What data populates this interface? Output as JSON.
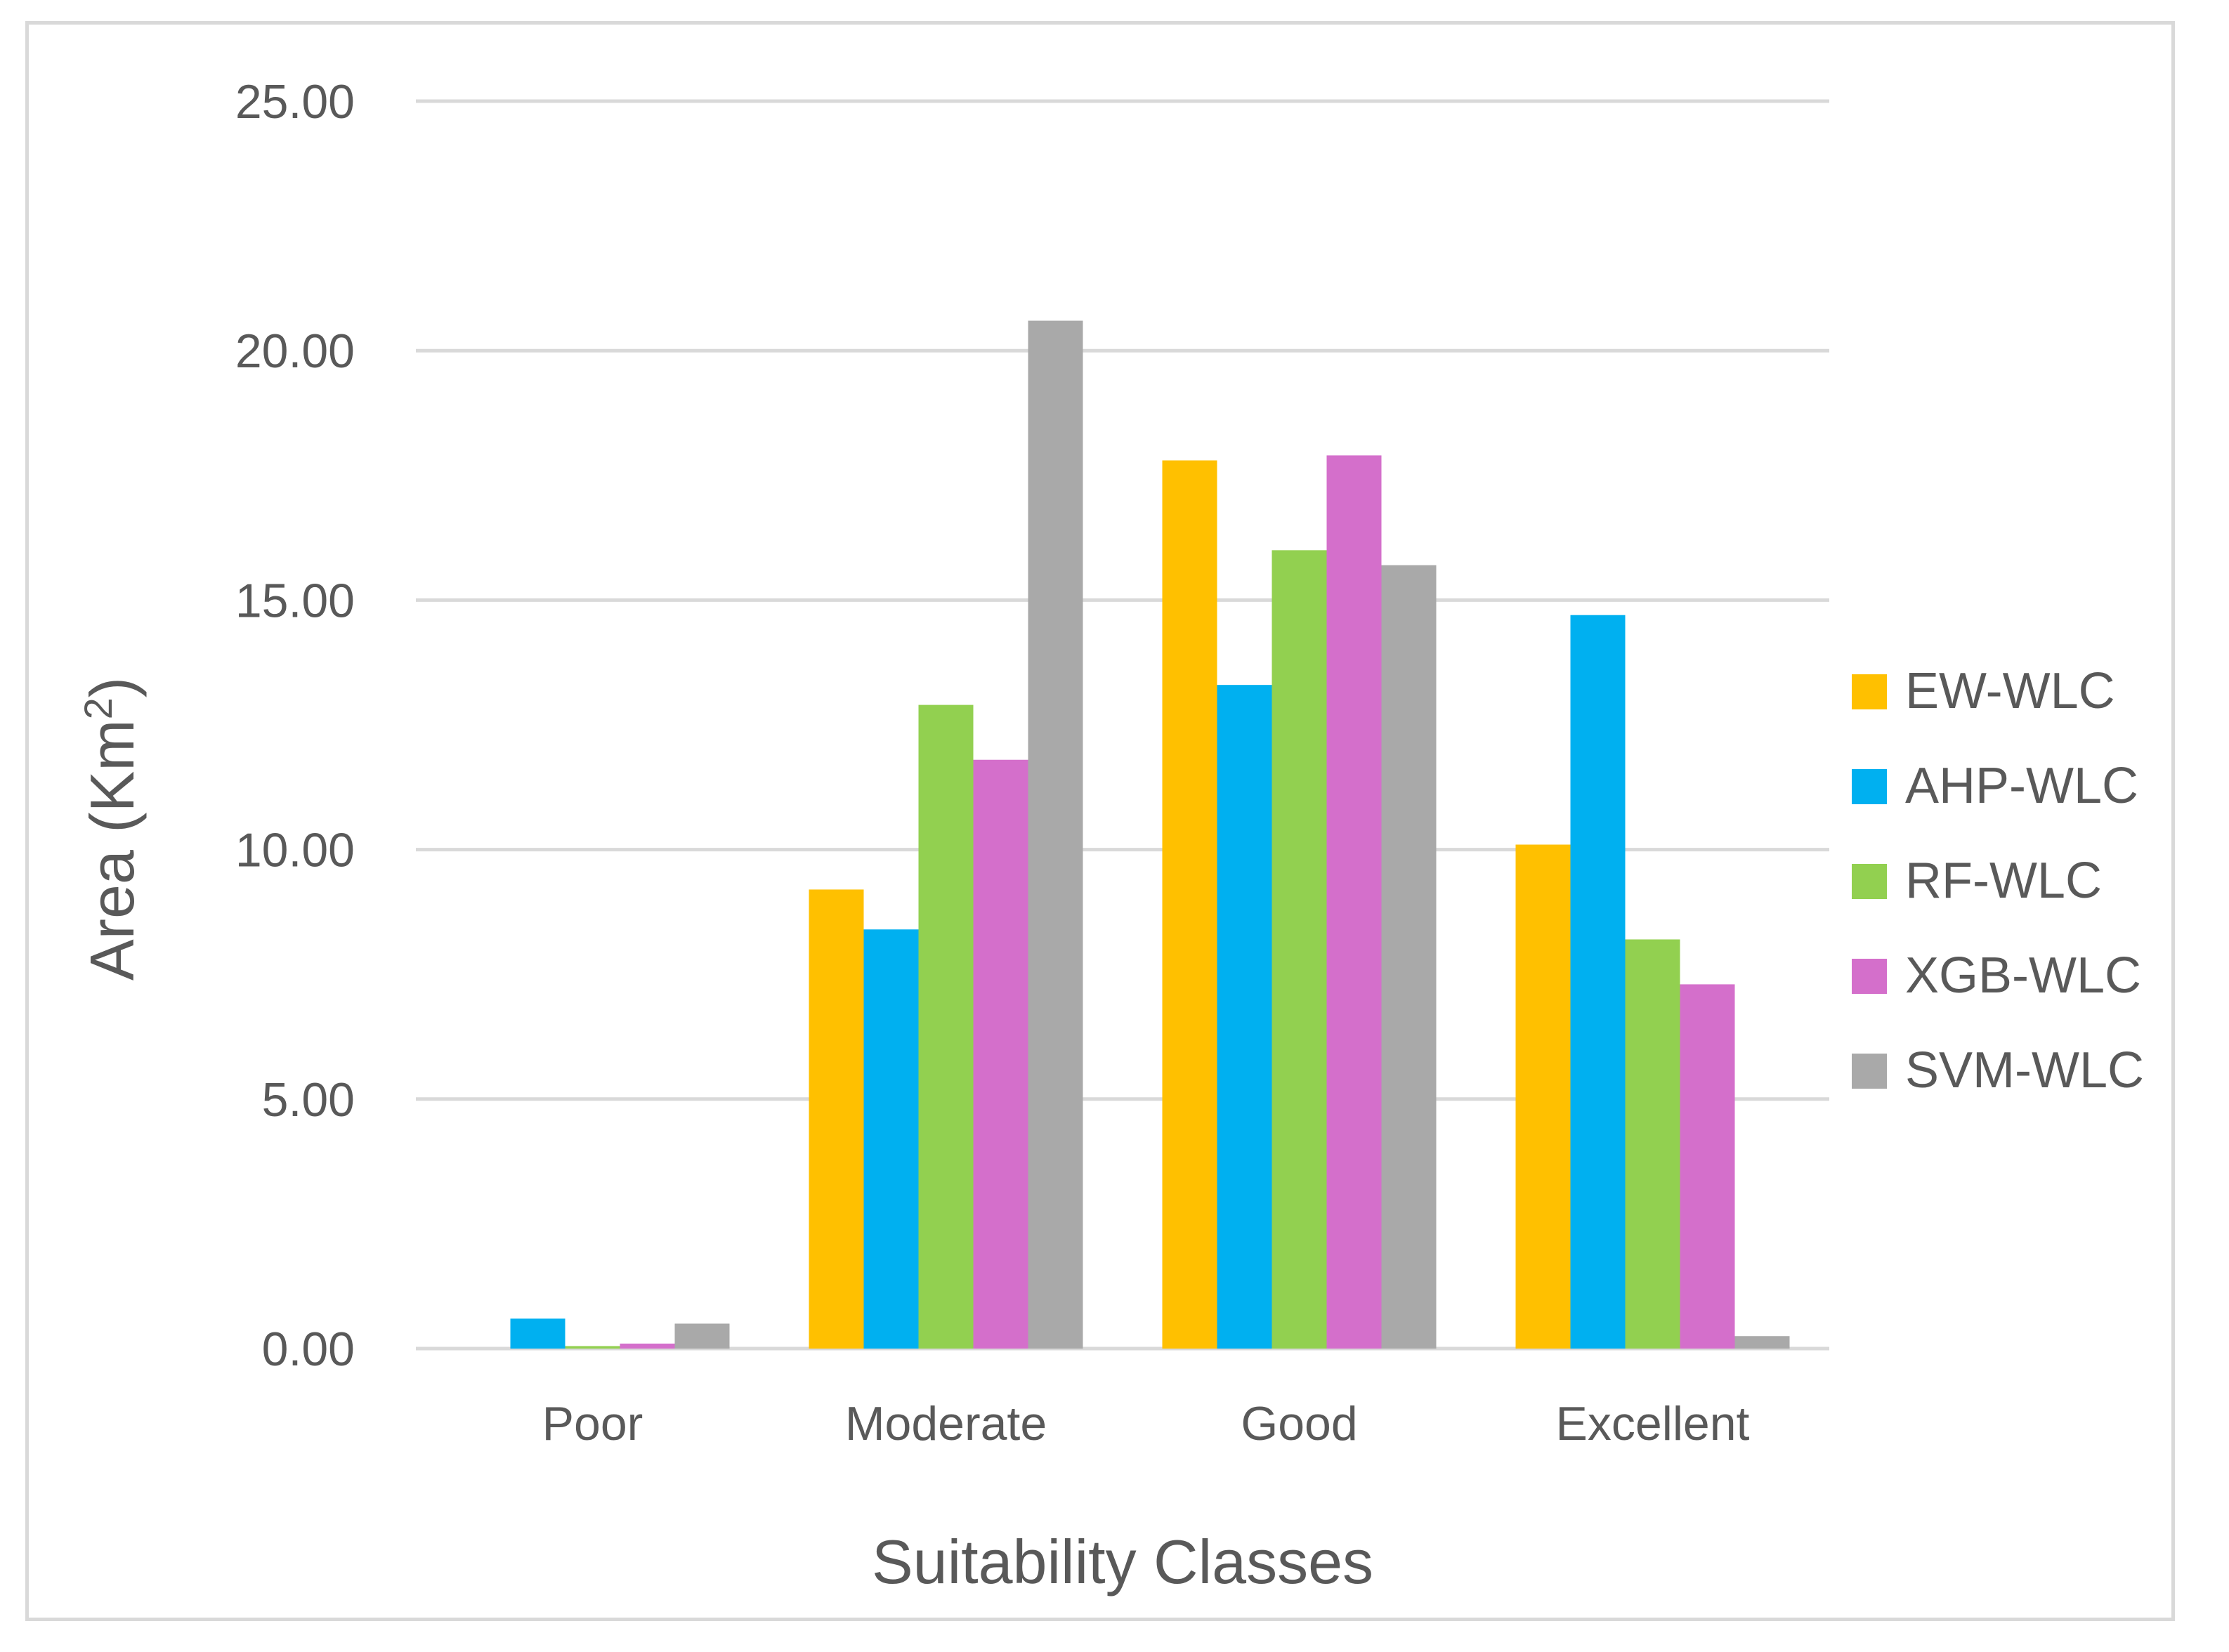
{
  "chart_data": {
    "type": "bar",
    "title": "",
    "xlabel": "Suitability Classes",
    "ylabel_main": "Area (Km",
    "ylabel_sup": "2",
    "ylabel_end": ")",
    "ylim": [
      0,
      25
    ],
    "yticks": [
      "0.00",
      "5.00",
      "10.00",
      "15.00",
      "20.00",
      "25.00"
    ],
    "ytick_values": [
      0,
      5,
      10,
      15,
      20,
      25
    ],
    "categories": [
      "Poor",
      "Moderate",
      "Good",
      "Excellent"
    ],
    "grid": true,
    "legend_position": "right",
    "series": [
      {
        "name": "EW-WLC",
        "color": "#FFC000",
        "values": [
          0.0,
          9.2,
          17.8,
          10.1
        ]
      },
      {
        "name": "AHP-WLC",
        "color": "#00B0F0",
        "values": [
          0.6,
          8.4,
          13.3,
          14.7
        ]
      },
      {
        "name": "RF-WLC",
        "color": "#92D050",
        "values": [
          0.05,
          12.9,
          16.0,
          8.2
        ]
      },
      {
        "name": "XGB-WLC",
        "color": "#D46FCB",
        "values": [
          0.1,
          11.8,
          17.9,
          7.3
        ]
      },
      {
        "name": "SVM-WLC",
        "color": "#A9A9A9",
        "values": [
          0.5,
          20.6,
          15.7,
          0.25
        ]
      }
    ]
  }
}
